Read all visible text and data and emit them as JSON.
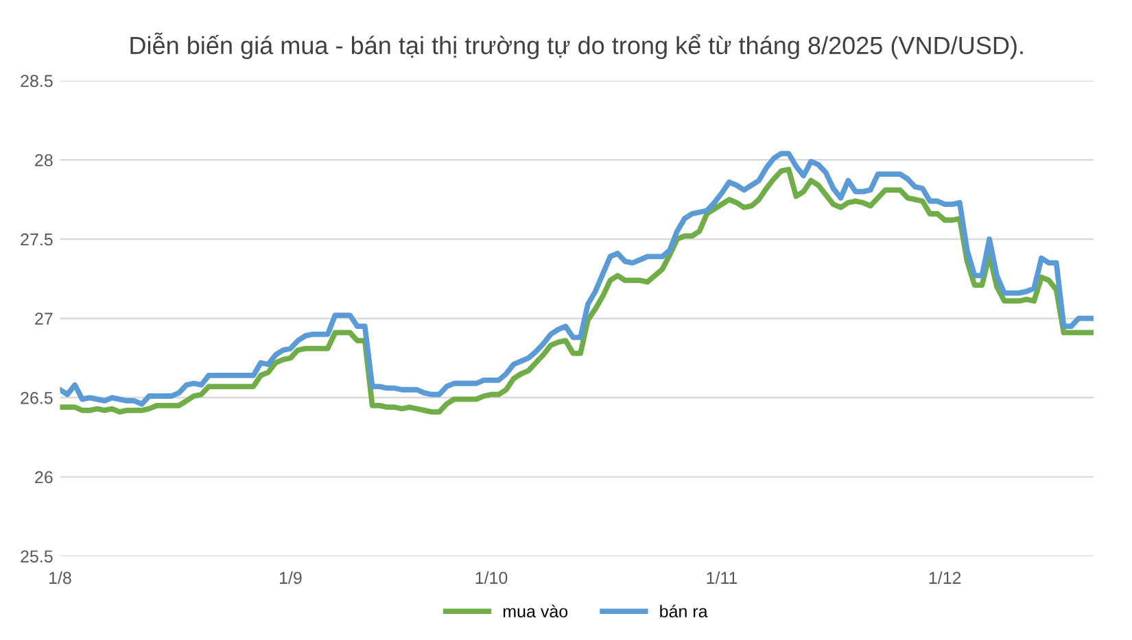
{
  "chart_data": {
    "type": "line",
    "title": "Diễn biến giá mua - bán tại thị trường tự do trong kể từ tháng 8/2025 (VND/USD).",
    "categories": [
      "1/8",
      null,
      null,
      null,
      null,
      null,
      null,
      null,
      null,
      null,
      null,
      null,
      null,
      null,
      null,
      null,
      null,
      null,
      null,
      null,
      null,
      null,
      null,
      null,
      null,
      null,
      null,
      null,
      null,
      null,
      null,
      "1/9",
      null,
      null,
      null,
      null,
      null,
      null,
      null,
      null,
      null,
      null,
      null,
      null,
      null,
      null,
      null,
      null,
      null,
      null,
      null,
      null,
      null,
      null,
      null,
      null,
      null,
      null,
      "1/10",
      null,
      null,
      null,
      null,
      null,
      null,
      null,
      null,
      null,
      null,
      null,
      null,
      null,
      null,
      null,
      null,
      null,
      null,
      null,
      null,
      null,
      null,
      null,
      null,
      null,
      null,
      null,
      null,
      null,
      null,
      "1/11",
      null,
      null,
      null,
      null,
      null,
      null,
      null,
      null,
      null,
      null,
      null,
      null,
      null,
      null,
      null,
      null,
      null,
      null,
      null,
      null,
      null,
      null,
      null,
      null,
      null,
      null,
      null,
      null,
      null,
      "1/12",
      null,
      null,
      null,
      null,
      null,
      null,
      null,
      null,
      null,
      null,
      null,
      null,
      null,
      null,
      null,
      null,
      null,
      null,
      null,
      null
    ],
    "series": [
      {
        "name": "mua vào",
        "color": "#70ad47",
        "values": [
          26.44,
          26.44,
          26.44,
          26.42,
          26.42,
          26.43,
          26.42,
          26.43,
          26.41,
          26.42,
          26.42,
          26.42,
          26.43,
          26.45,
          26.45,
          26.45,
          26.45,
          26.48,
          26.51,
          26.52,
          26.57,
          26.57,
          26.57,
          26.57,
          26.57,
          26.57,
          26.57,
          26.64,
          26.66,
          26.72,
          26.74,
          26.75,
          26.8,
          26.81,
          26.81,
          26.81,
          26.81,
          26.91,
          26.91,
          26.91,
          26.86,
          26.86,
          26.45,
          26.45,
          26.44,
          26.44,
          26.43,
          26.44,
          26.43,
          26.42,
          26.41,
          26.41,
          26.46,
          26.49,
          26.49,
          26.49,
          26.49,
          26.51,
          26.52,
          26.52,
          26.55,
          26.62,
          26.65,
          26.67,
          26.72,
          26.77,
          26.83,
          26.85,
          26.86,
          26.78,
          26.78,
          26.99,
          27.06,
          27.14,
          27.24,
          27.27,
          27.24,
          27.24,
          27.24,
          27.23,
          27.27,
          27.31,
          27.4,
          27.5,
          27.52,
          27.52,
          27.55,
          27.66,
          27.69,
          27.72,
          27.75,
          27.73,
          27.7,
          27.71,
          27.75,
          27.82,
          27.88,
          27.93,
          27.94,
          27.77,
          27.8,
          27.87,
          27.84,
          27.78,
          27.72,
          27.7,
          27.73,
          27.74,
          27.73,
          27.71,
          27.76,
          27.81,
          27.81,
          27.81,
          27.76,
          27.75,
          27.74,
          27.66,
          27.66,
          27.62,
          27.62,
          27.63,
          27.36,
          27.21,
          27.21,
          27.4,
          27.2,
          27.11,
          27.11,
          27.11,
          27.12,
          27.11,
          27.26,
          27.24,
          27.18,
          26.91,
          26.91,
          26.91,
          26.91,
          26.91
        ]
      },
      {
        "name": "bán ra",
        "color": "#5b9bd5",
        "values": [
          26.55,
          26.52,
          26.58,
          26.49,
          26.5,
          26.49,
          26.48,
          26.5,
          26.49,
          26.48,
          26.48,
          26.46,
          26.51,
          26.51,
          26.51,
          26.51,
          26.53,
          26.58,
          26.59,
          26.58,
          26.64,
          26.64,
          26.64,
          26.64,
          26.64,
          26.64,
          26.64,
          26.72,
          26.71,
          26.77,
          26.8,
          26.81,
          26.86,
          26.89,
          26.9,
          26.9,
          26.9,
          27.02,
          27.02,
          27.02,
          26.95,
          26.95,
          26.57,
          26.57,
          26.56,
          26.56,
          26.55,
          26.55,
          26.55,
          26.53,
          26.52,
          26.52,
          26.57,
          26.59,
          26.59,
          26.59,
          26.59,
          26.61,
          26.61,
          26.61,
          26.65,
          26.71,
          26.73,
          26.75,
          26.79,
          26.84,
          26.9,
          26.93,
          26.95,
          26.88,
          26.88,
          27.09,
          27.17,
          27.28,
          27.39,
          27.41,
          27.36,
          27.35,
          27.37,
          27.39,
          27.39,
          27.39,
          27.43,
          27.55,
          27.63,
          27.66,
          27.67,
          27.68,
          27.73,
          27.79,
          27.86,
          27.84,
          27.81,
          27.84,
          27.87,
          27.95,
          28.01,
          28.04,
          28.04,
          27.96,
          27.9,
          27.99,
          27.97,
          27.92,
          27.82,
          27.76,
          27.87,
          27.8,
          27.8,
          27.81,
          27.91,
          27.91,
          27.91,
          27.91,
          27.88,
          27.83,
          27.82,
          27.74,
          27.74,
          27.72,
          27.72,
          27.73,
          27.43,
          27.27,
          27.27,
          27.5,
          27.27,
          27.16,
          27.16,
          27.16,
          27.17,
          27.19,
          27.38,
          27.35,
          27.35,
          26.95,
          26.95,
          27.0,
          27.0,
          27.0
        ]
      }
    ],
    "ylim": [
      25.5,
      28.5
    ],
    "yticks": [
      25.5,
      26,
      26.5,
      27,
      27.5,
      28,
      28.5
    ],
    "grid": "y",
    "legend": "bottom",
    "marker": "none",
    "line_style": "solid"
  }
}
